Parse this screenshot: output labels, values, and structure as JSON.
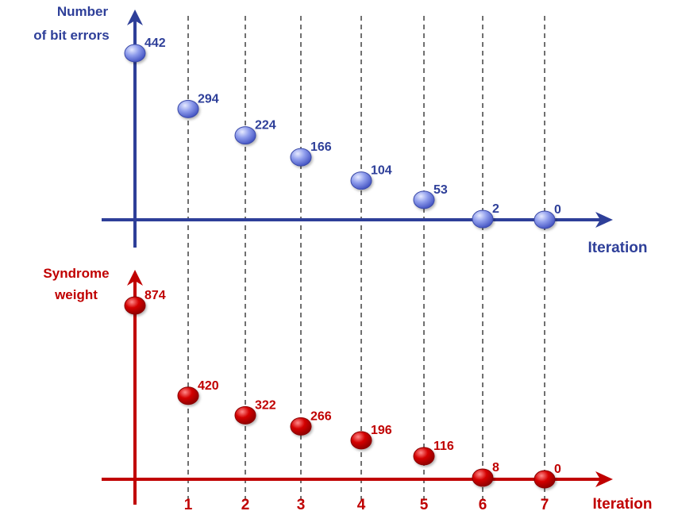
{
  "chart_data": [
    {
      "type": "scatter",
      "ylabel_lines": [
        "Number",
        "of bit errors"
      ],
      "xlabel": "Iteration",
      "x": [
        0,
        1,
        2,
        3,
        4,
        5,
        6,
        7
      ],
      "values": [
        442,
        294,
        224,
        166,
        104,
        53,
        2,
        0
      ],
      "labels": [
        "442",
        "294",
        "224",
        "166",
        "104",
        "53",
        "2",
        "0"
      ],
      "color": "#2e3f99",
      "marker_color": "#7f8fe6",
      "grid": false
    },
    {
      "type": "scatter",
      "ylabel_lines": [
        "Syndrome",
        "weight"
      ],
      "xlabel": "Iteration",
      "x": [
        0,
        1,
        2,
        3,
        4,
        5,
        6,
        7
      ],
      "values": [
        874,
        420,
        322,
        266,
        196,
        116,
        8,
        0
      ],
      "labels": [
        "874",
        "420",
        "322",
        "266",
        "196",
        "116",
        "8",
        "0"
      ],
      "color": "#c00000",
      "marker_color": "#d00000",
      "grid": false
    }
  ],
  "x_ticks": [
    "1",
    "2",
    "3",
    "4",
    "5",
    "6",
    "7"
  ],
  "style": {
    "guide_lines": "dashed vertical lines at each iteration"
  }
}
